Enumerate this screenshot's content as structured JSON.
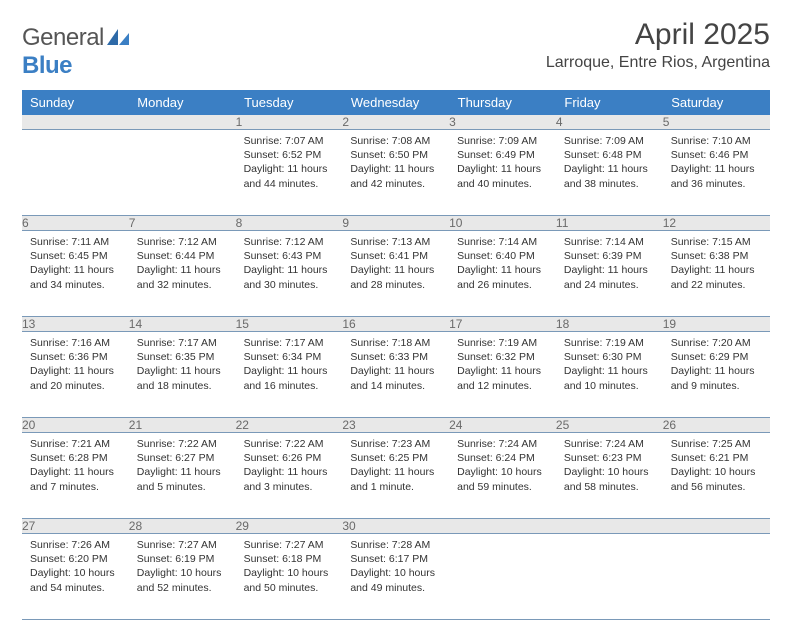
{
  "logo": {
    "text1": "General",
    "text2": "Blue"
  },
  "title": "April 2025",
  "location": "Larroque, Entre Rios, Argentina",
  "weekdays": [
    "Sunday",
    "Monday",
    "Tuesday",
    "Wednesday",
    "Thursday",
    "Friday",
    "Saturday"
  ],
  "colors": {
    "header_bg": "#3b7fc4",
    "header_text": "#ffffff",
    "daynum_bg": "#e8e8e8",
    "daynum_text": "#6a6a6a",
    "cell_border": "#7a99b8",
    "body_text": "#333333"
  },
  "weeks": [
    [
      null,
      null,
      {
        "n": "1",
        "sr": "7:07 AM",
        "ss": "6:52 PM",
        "dl": "11 hours and 44 minutes."
      },
      {
        "n": "2",
        "sr": "7:08 AM",
        "ss": "6:50 PM",
        "dl": "11 hours and 42 minutes."
      },
      {
        "n": "3",
        "sr": "7:09 AM",
        "ss": "6:49 PM",
        "dl": "11 hours and 40 minutes."
      },
      {
        "n": "4",
        "sr": "7:09 AM",
        "ss": "6:48 PM",
        "dl": "11 hours and 38 minutes."
      },
      {
        "n": "5",
        "sr": "7:10 AM",
        "ss": "6:46 PM",
        "dl": "11 hours and 36 minutes."
      }
    ],
    [
      {
        "n": "6",
        "sr": "7:11 AM",
        "ss": "6:45 PM",
        "dl": "11 hours and 34 minutes."
      },
      {
        "n": "7",
        "sr": "7:12 AM",
        "ss": "6:44 PM",
        "dl": "11 hours and 32 minutes."
      },
      {
        "n": "8",
        "sr": "7:12 AM",
        "ss": "6:43 PM",
        "dl": "11 hours and 30 minutes."
      },
      {
        "n": "9",
        "sr": "7:13 AM",
        "ss": "6:41 PM",
        "dl": "11 hours and 28 minutes."
      },
      {
        "n": "10",
        "sr": "7:14 AM",
        "ss": "6:40 PM",
        "dl": "11 hours and 26 minutes."
      },
      {
        "n": "11",
        "sr": "7:14 AM",
        "ss": "6:39 PM",
        "dl": "11 hours and 24 minutes."
      },
      {
        "n": "12",
        "sr": "7:15 AM",
        "ss": "6:38 PM",
        "dl": "11 hours and 22 minutes."
      }
    ],
    [
      {
        "n": "13",
        "sr": "7:16 AM",
        "ss": "6:36 PM",
        "dl": "11 hours and 20 minutes."
      },
      {
        "n": "14",
        "sr": "7:17 AM",
        "ss": "6:35 PM",
        "dl": "11 hours and 18 minutes."
      },
      {
        "n": "15",
        "sr": "7:17 AM",
        "ss": "6:34 PM",
        "dl": "11 hours and 16 minutes."
      },
      {
        "n": "16",
        "sr": "7:18 AM",
        "ss": "6:33 PM",
        "dl": "11 hours and 14 minutes."
      },
      {
        "n": "17",
        "sr": "7:19 AM",
        "ss": "6:32 PM",
        "dl": "11 hours and 12 minutes."
      },
      {
        "n": "18",
        "sr": "7:19 AM",
        "ss": "6:30 PM",
        "dl": "11 hours and 10 minutes."
      },
      {
        "n": "19",
        "sr": "7:20 AM",
        "ss": "6:29 PM",
        "dl": "11 hours and 9 minutes."
      }
    ],
    [
      {
        "n": "20",
        "sr": "7:21 AM",
        "ss": "6:28 PM",
        "dl": "11 hours and 7 minutes."
      },
      {
        "n": "21",
        "sr": "7:22 AM",
        "ss": "6:27 PM",
        "dl": "11 hours and 5 minutes."
      },
      {
        "n": "22",
        "sr": "7:22 AM",
        "ss": "6:26 PM",
        "dl": "11 hours and 3 minutes."
      },
      {
        "n": "23",
        "sr": "7:23 AM",
        "ss": "6:25 PM",
        "dl": "11 hours and 1 minute."
      },
      {
        "n": "24",
        "sr": "7:24 AM",
        "ss": "6:24 PM",
        "dl": "10 hours and 59 minutes."
      },
      {
        "n": "25",
        "sr": "7:24 AM",
        "ss": "6:23 PM",
        "dl": "10 hours and 58 minutes."
      },
      {
        "n": "26",
        "sr": "7:25 AM",
        "ss": "6:21 PM",
        "dl": "10 hours and 56 minutes."
      }
    ],
    [
      {
        "n": "27",
        "sr": "7:26 AM",
        "ss": "6:20 PM",
        "dl": "10 hours and 54 minutes."
      },
      {
        "n": "28",
        "sr": "7:27 AM",
        "ss": "6:19 PM",
        "dl": "10 hours and 52 minutes."
      },
      {
        "n": "29",
        "sr": "7:27 AM",
        "ss": "6:18 PM",
        "dl": "10 hours and 50 minutes."
      },
      {
        "n": "30",
        "sr": "7:28 AM",
        "ss": "6:17 PM",
        "dl": "10 hours and 49 minutes."
      },
      null,
      null,
      null
    ]
  ],
  "labels": {
    "sunrise": "Sunrise:",
    "sunset": "Sunset:",
    "daylight": "Daylight:"
  }
}
